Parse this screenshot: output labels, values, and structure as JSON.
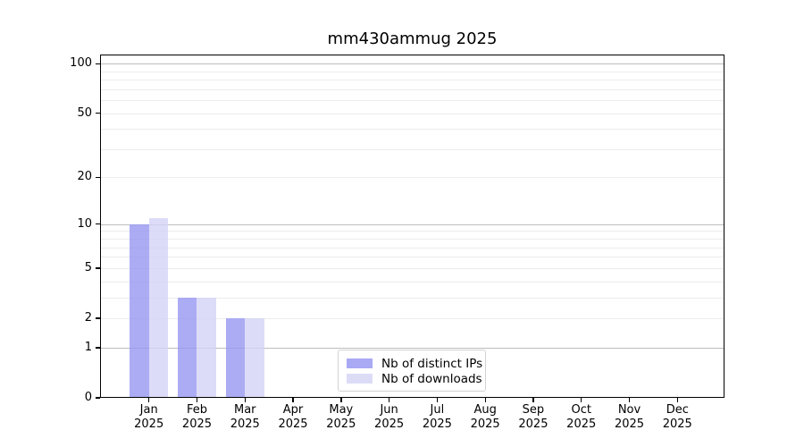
{
  "chart_data": {
    "type": "bar",
    "title": "mm430ammug 2025",
    "x": [
      "Jan",
      "Feb",
      "Mar",
      "Apr",
      "May",
      "Jun",
      "Jul",
      "Aug",
      "Sep",
      "Oct",
      "Nov",
      "Dec"
    ],
    "x_year": "2025",
    "series": [
      {
        "name": "Nb of distinct IPs",
        "color": "#a9a9f4",
        "fill_rgba": "rgba(151,151,243,0.8)",
        "values": [
          10,
          3,
          2,
          0,
          0,
          0,
          0,
          0,
          0,
          0,
          0,
          0
        ]
      },
      {
        "name": "Nb of downloads",
        "color": "#dcdcf7",
        "fill_rgba": "rgba(211,211,246,0.8)",
        "values": [
          11,
          3,
          2,
          0,
          0,
          0,
          0,
          0,
          0,
          0,
          0,
          0
        ]
      }
    ],
    "y_ticks": [
      0,
      1,
      2,
      5,
      10,
      20,
      50,
      100
    ],
    "y_scale": "log1p",
    "ylim": [
      0,
      112
    ],
    "grid": {
      "major_values": [
        1,
        10,
        100
      ],
      "minor_values": [
        2,
        3,
        4,
        5,
        6,
        7,
        8,
        9,
        20,
        30,
        40,
        50,
        60,
        70,
        80,
        90
      ],
      "major_color": "#bdbdbd",
      "minor_color": "#ececec"
    },
    "axis_color": "#000000",
    "background": "#ffffff",
    "legend_position": "lower-center-inside"
  }
}
